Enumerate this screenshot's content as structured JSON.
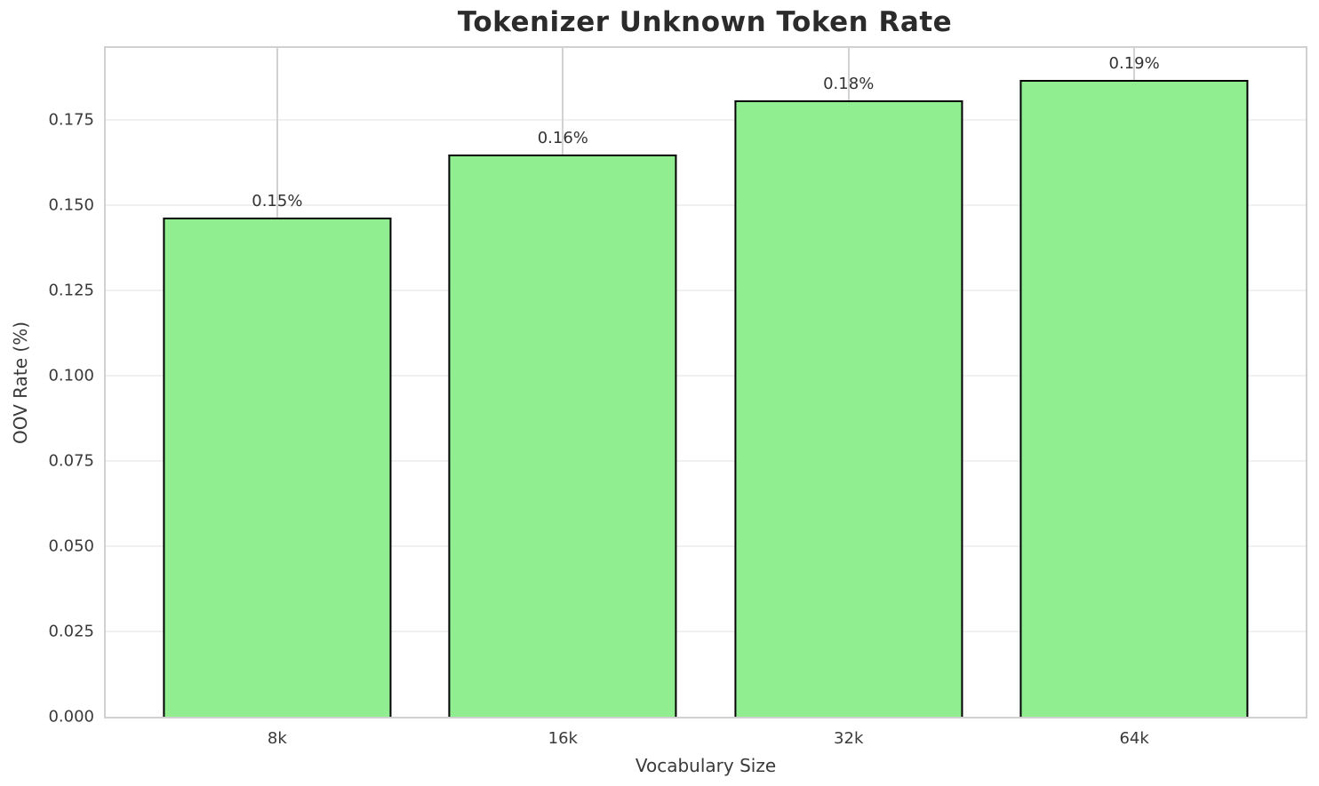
{
  "chart_data": {
    "type": "bar",
    "title": "Tokenizer Unknown Token Rate",
    "xlabel": "Vocabulary Size",
    "ylabel": "OOV Rate (%)",
    "categories": [
      "8k",
      "16k",
      "32k",
      "64k"
    ],
    "values": [
      0.1464,
      0.1648,
      0.1806,
      0.1867
    ],
    "bar_labels": [
      "0.15%",
      "0.16%",
      "0.18%",
      "0.19%"
    ],
    "ylim": [
      0,
      0.196
    ],
    "yticks": [
      0.0,
      0.025,
      0.05,
      0.075,
      0.1,
      0.125,
      0.15,
      0.175
    ],
    "ytick_labels": [
      "0.000",
      "0.025",
      "0.050",
      "0.075",
      "0.100",
      "0.125",
      "0.150",
      "0.175"
    ],
    "grid": true,
    "legend": "none",
    "colors": {
      "bar_fill": "#90EE90",
      "bar_edge": "#000000",
      "gridline_horizontal": "#f0f0f2",
      "gridline_vertical": "#d2d2d2",
      "spine": "#d0d0d0",
      "title_text": "#2b2b2b",
      "axis_text": "#3a3a3a",
      "background": "#ffffff"
    }
  }
}
